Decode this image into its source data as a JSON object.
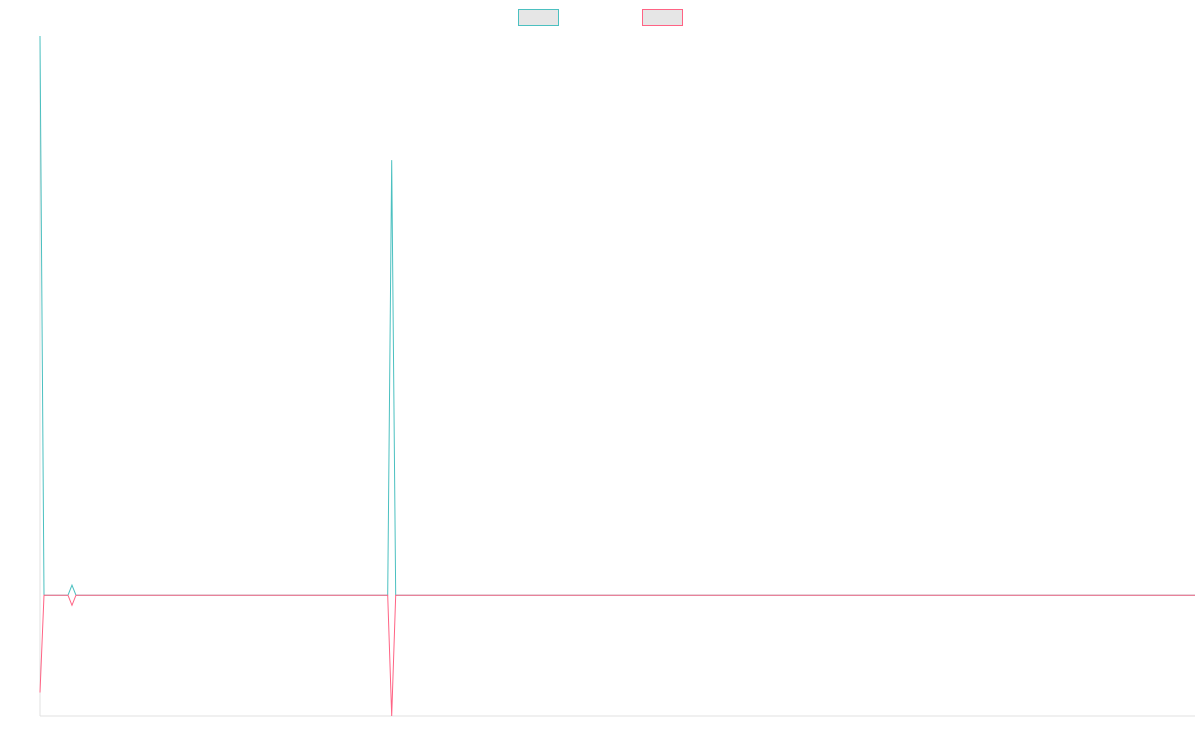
{
  "chart_data": {
    "type": "line",
    "x": [
      0,
      1,
      7,
      8,
      9,
      87,
      88,
      89,
      289
    ],
    "xlim": [
      0,
      289
    ],
    "ylim": [
      -21.6,
      100
    ],
    "legend": "top",
    "series": [
      {
        "color": "#4bc0c0",
        "values": [
          100,
          0,
          0,
          1.8,
          0,
          0,
          77.8,
          0,
          0
        ]
      },
      {
        "color": "#ff6384",
        "values": [
          -17.4,
          0,
          0,
          -1.8,
          0,
          0,
          -21.6,
          0,
          0
        ]
      }
    ]
  }
}
